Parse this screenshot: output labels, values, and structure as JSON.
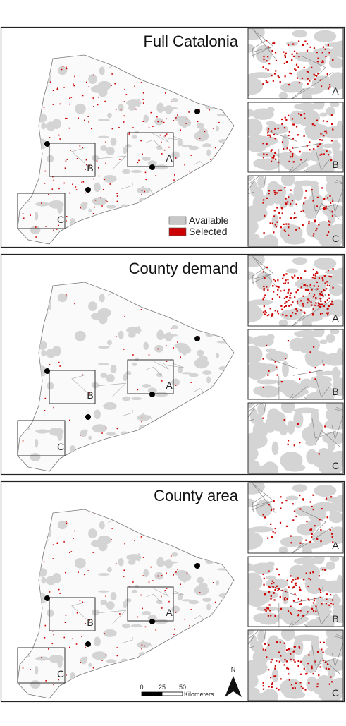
{
  "panels": [
    {
      "title": "Full Catalonia",
      "map_labels": [
        "A",
        "B",
        "C"
      ],
      "inset_labels": [
        "A",
        "B",
        "C"
      ]
    },
    {
      "title": "County demand",
      "map_labels": [
        "A",
        "B",
        "C"
      ],
      "inset_labels": [
        "A",
        "B",
        "C"
      ]
    },
    {
      "title": "County area",
      "map_labels": [
        "A",
        "B",
        "C"
      ],
      "inset_labels": [
        "A",
        "B",
        "C"
      ]
    }
  ],
  "legend": {
    "items": [
      "Available",
      "Selected"
    ]
  },
  "scale_bar": {
    "ticks": [
      0,
      25,
      50
    ],
    "unit": "Kilometers"
  },
  "north_arrow": "N"
}
